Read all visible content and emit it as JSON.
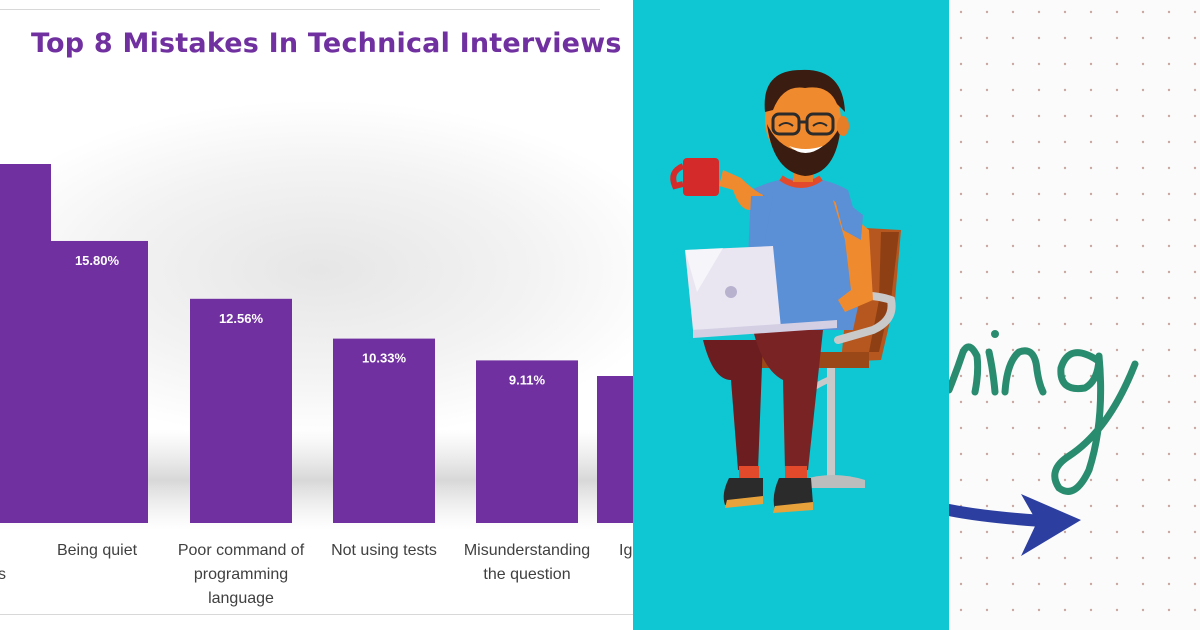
{
  "chart_data": {
    "type": "bar",
    "title": "Top 8 Mistakes In Technical Interviews",
    "categories": [
      "",
      "Being quiet",
      "Poor command of programming language",
      "Not using tests",
      "Misunderstanding the question",
      "Ig"
    ],
    "category_lines": [
      [
        "s"
      ],
      [
        "Being quiet"
      ],
      [
        "Poor command of",
        "programming",
        "language"
      ],
      [
        "Not using tests"
      ],
      [
        "Misunderstanding",
        "the question"
      ],
      [
        "Ig"
      ]
    ],
    "values": [
      null,
      15.8,
      12.56,
      10.33,
      9.11,
      null
    ],
    "value_labels": [
      "",
      "15.80%",
      "12.56%",
      "10.33%",
      "9.11%",
      ""
    ],
    "bar_color": "#7030a0",
    "title_color": "#7030a0"
  },
  "illustration": {
    "subject": "bearded man with glasses sitting on a chair holding a red mug and a laptop",
    "background_color": "#0ec7d2"
  },
  "handwriting": {
    "text": "ring",
    "ink_color": "#2a8c6e",
    "arrow_color": "#2c3fa0"
  }
}
